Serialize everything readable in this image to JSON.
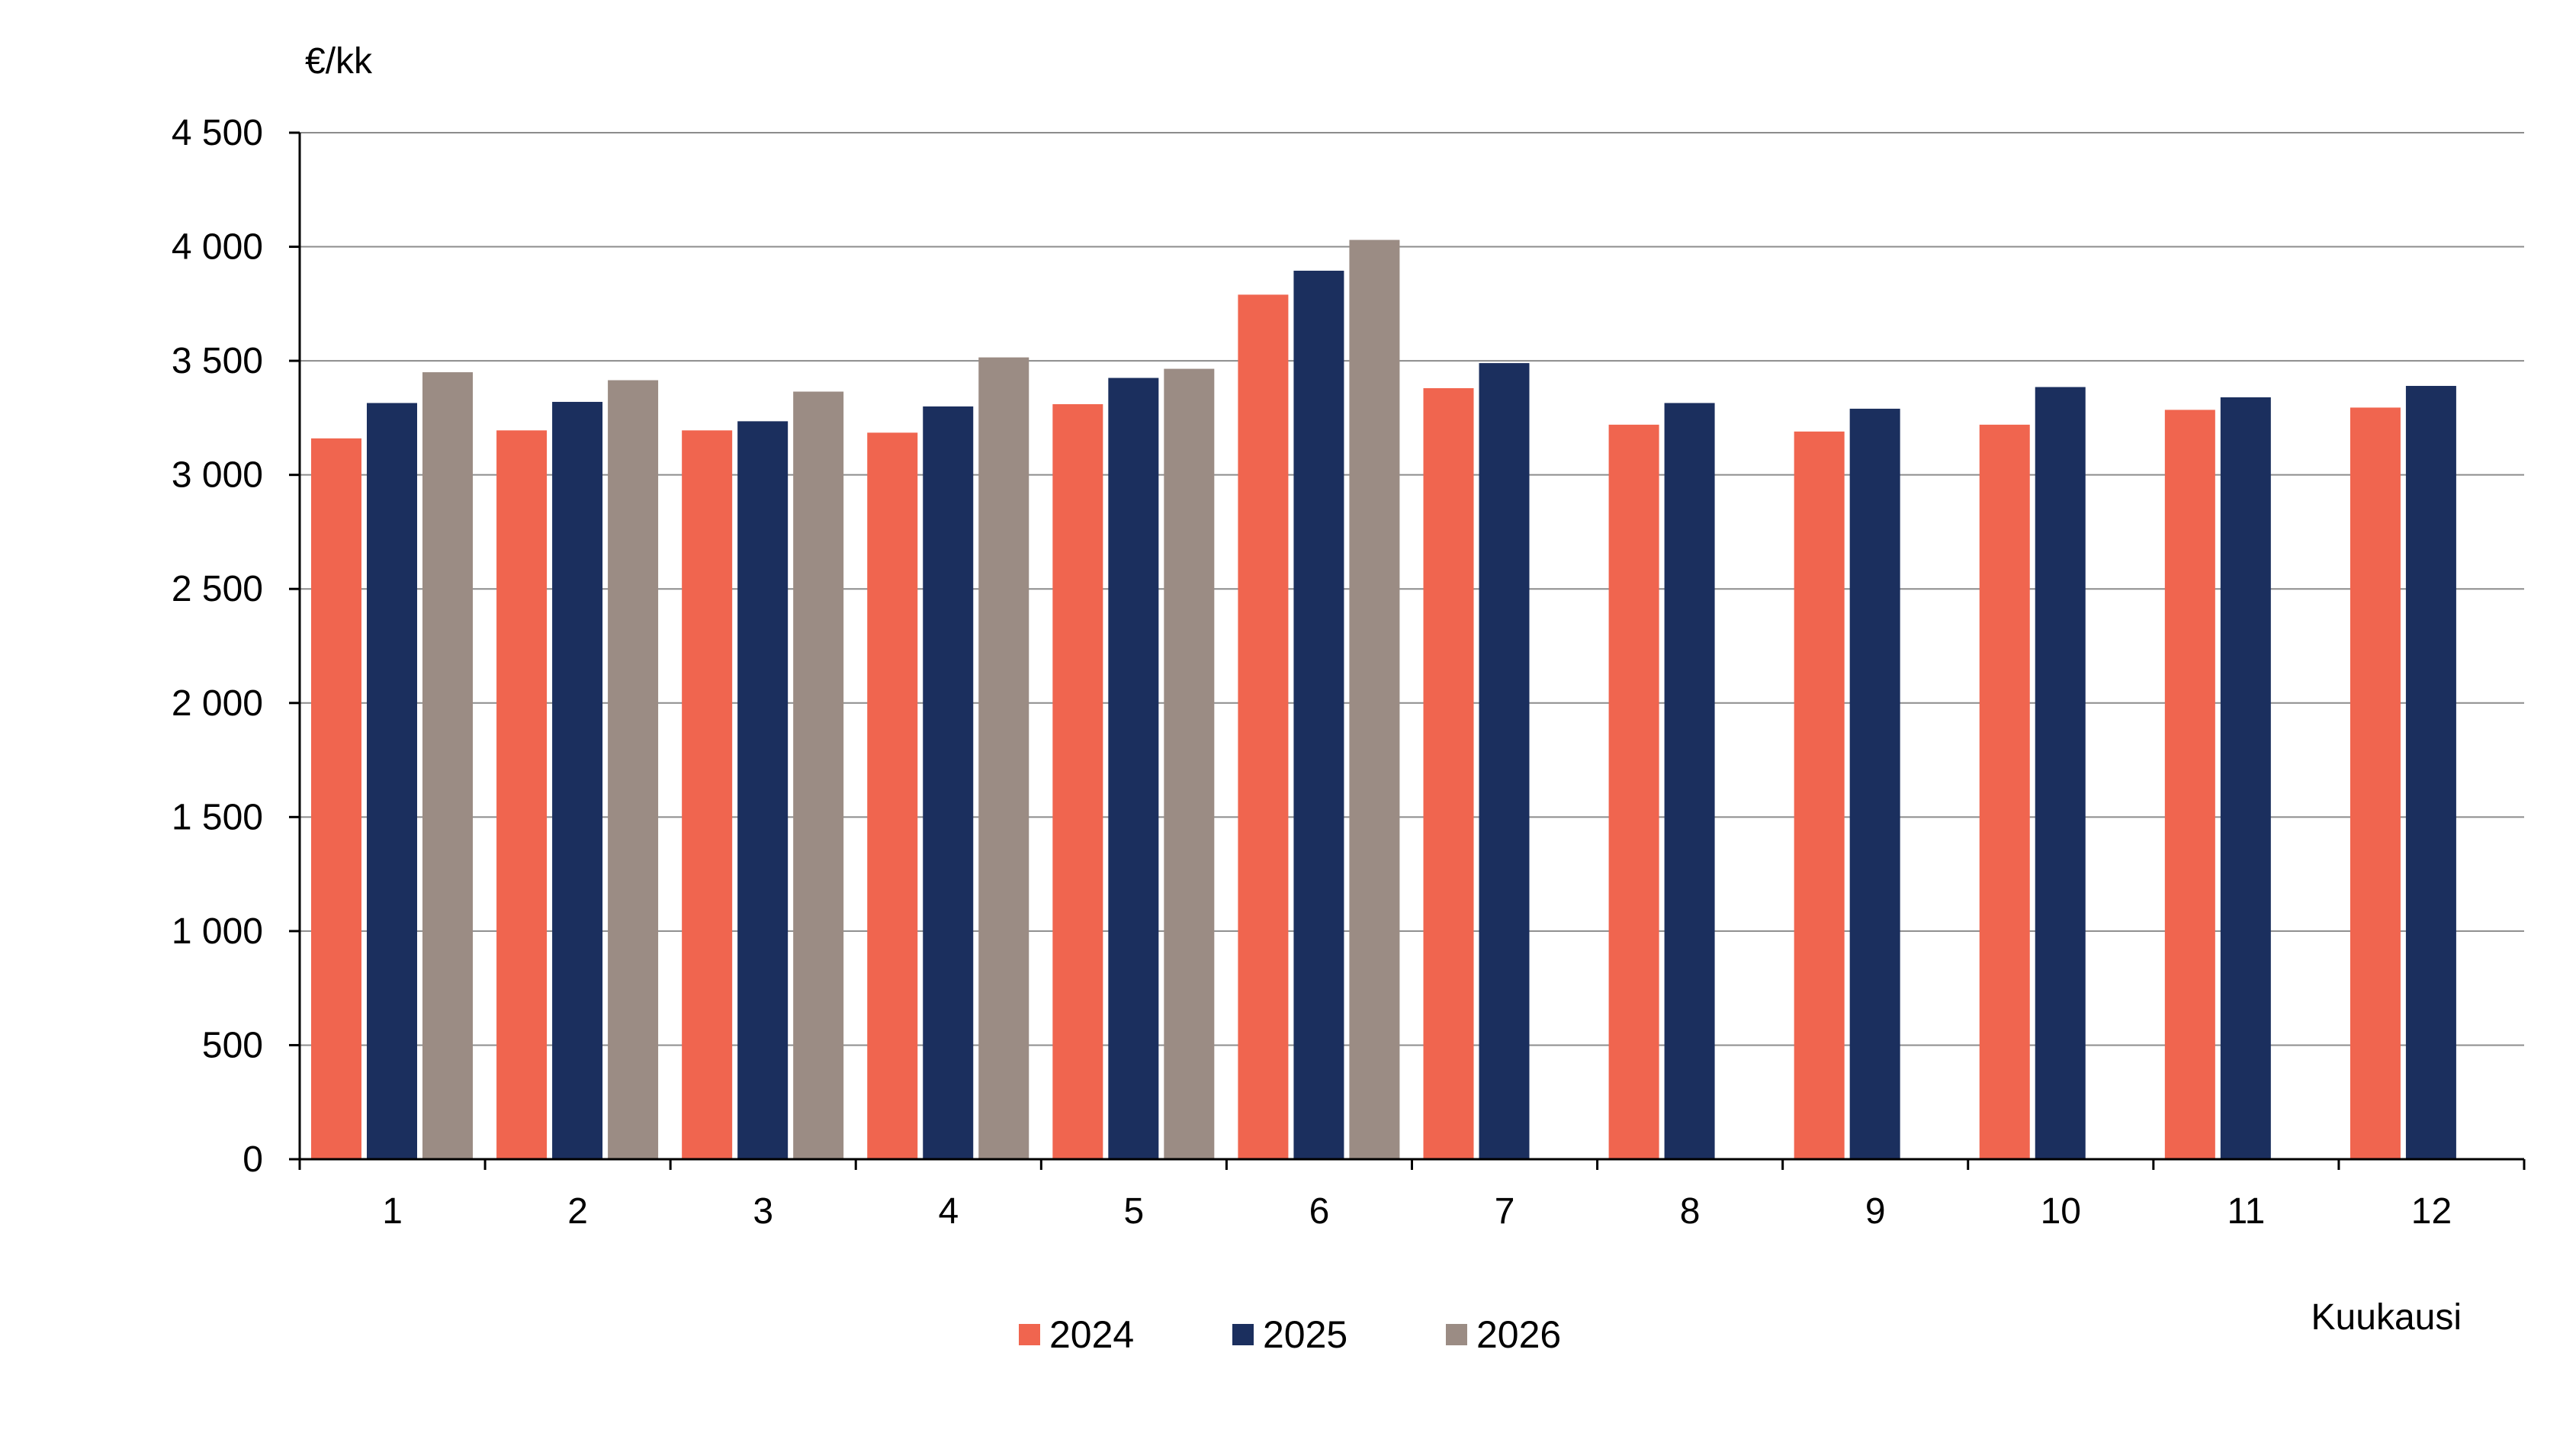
{
  "chart_data": {
    "type": "bar",
    "title": "",
    "ylabel": "€/kk",
    "xlabel": "Kuukausi",
    "ylim": [
      0,
      4500
    ],
    "yticks": [
      0,
      500,
      1000,
      1500,
      2000,
      2500,
      3000,
      3500,
      4000,
      4500
    ],
    "ytick_labels": [
      "0",
      "500",
      "1 000",
      "1 500",
      "2 000",
      "2 500",
      "3 000",
      "3 500",
      "4 000",
      "4 500"
    ],
    "categories": [
      "1",
      "2",
      "3",
      "4",
      "5",
      "6",
      "7",
      "8",
      "9",
      "10",
      "11",
      "12"
    ],
    "grid": "horizontal",
    "legend_position": "bottom-center",
    "series": [
      {
        "name": "2024",
        "color": "#f0654f",
        "values": [
          3160,
          3195,
          3195,
          3185,
          3310,
          3790,
          3380,
          3220,
          3190,
          3220,
          3285,
          3295
        ]
      },
      {
        "name": "2025",
        "color": "#1b2f5e",
        "values": [
          3315,
          3320,
          3235,
          3300,
          3425,
          3895,
          3490,
          3315,
          3290,
          3385,
          3340,
          3390
        ]
      },
      {
        "name": "2026",
        "color": "#9b8c84",
        "values": [
          3450,
          3415,
          3365,
          3515,
          3465,
          4030,
          null,
          null,
          null,
          null,
          null,
          null
        ]
      }
    ]
  }
}
